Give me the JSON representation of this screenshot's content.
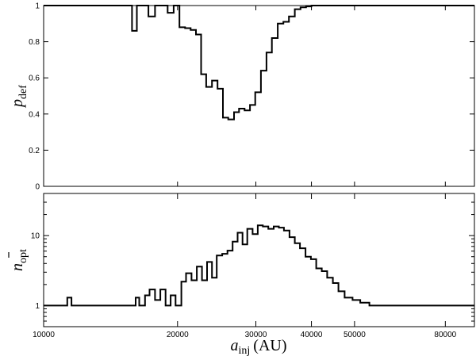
{
  "chart_data": [
    {
      "type": "line",
      "step": true,
      "ylabel_main": "p",
      "ylabel_sub": "def",
      "ylim": [
        0,
        1
      ],
      "yticks": [
        "0",
        "0.2",
        "0.4",
        "0.6",
        "0.8",
        "1"
      ],
      "ytick_values": [
        0,
        0.2,
        0.4,
        0.6,
        0.8,
        1
      ],
      "xscale": "log",
      "xlim": [
        10000,
        93000
      ],
      "grid": false,
      "x": [
        10000,
        15800,
        16200,
        16700,
        17200,
        17800,
        18400,
        19000,
        19600,
        20200,
        20800,
        21400,
        22000,
        22600,
        23200,
        23900,
        24600,
        25300,
        26000,
        26800,
        27500,
        28300,
        29100,
        29900,
        30800,
        31700,
        32600,
        33600,
        34600,
        35600,
        36700,
        37800,
        38900,
        40000,
        41200,
        42500,
        44000,
        46000,
        93000
      ],
      "y": [
        1,
        0.86,
        1,
        1,
        0.94,
        1,
        1,
        0.96,
        1,
        0.88,
        0.875,
        0.865,
        0.84,
        0.62,
        0.55,
        0.585,
        0.54,
        0.38,
        0.37,
        0.41,
        0.43,
        0.42,
        0.45,
        0.52,
        0.64,
        0.74,
        0.82,
        0.9,
        0.91,
        0.94,
        0.98,
        0.99,
        0.995,
        1,
        1,
        1,
        1,
        1,
        1
      ]
    },
    {
      "type": "line",
      "step": true,
      "ylabel_main": "n",
      "ylabel_sub": "opt",
      "yscale": "log",
      "ylim": [
        0.5,
        40
      ],
      "yticks": [
        "1",
        "10"
      ],
      "ytick_values": [
        1,
        10
      ],
      "xscale": "log",
      "xlim": [
        10000,
        93000
      ],
      "xticks": [
        "10000",
        "20000",
        "30000",
        "40000",
        "50000",
        "80000"
      ],
      "xtick_values": [
        10000,
        20000,
        30000,
        40000,
        50000,
        80000
      ],
      "xlabel_main": "a",
      "xlabel_sub": "inj",
      "xlabel_unit": "(AU)",
      "grid": false,
      "x": [
        10000,
        11300,
        11550,
        15700,
        16100,
        16400,
        16900,
        17300,
        17800,
        18300,
        18800,
        19300,
        19800,
        20400,
        20900,
        21500,
        22100,
        22700,
        23300,
        23900,
        24500,
        25200,
        25900,
        26600,
        27300,
        28000,
        28700,
        29500,
        30300,
        31100,
        32000,
        32900,
        33800,
        34700,
        35700,
        36700,
        37700,
        38800,
        39900,
        41000,
        42200,
        43400,
        44700,
        46000,
        47500,
        49500,
        51500,
        54000,
        93000
      ],
      "y": [
        1,
        1.3,
        1,
        1,
        1.3,
        1,
        1.4,
        1.7,
        1.2,
        1.7,
        1,
        1.4,
        1,
        2.2,
        2.9,
        2.3,
        3.6,
        2.3,
        4.2,
        2.5,
        5.2,
        5.5,
        6.1,
        8.2,
        11,
        7.5,
        12.5,
        10.5,
        14,
        13.5,
        12.5,
        13.5,
        13,
        11.8,
        9.5,
        7.8,
        6.6,
        5,
        4.6,
        3.4,
        3.1,
        2.5,
        2.1,
        1.6,
        1.3,
        1.2,
        1.1,
        1,
        1
      ]
    }
  ]
}
